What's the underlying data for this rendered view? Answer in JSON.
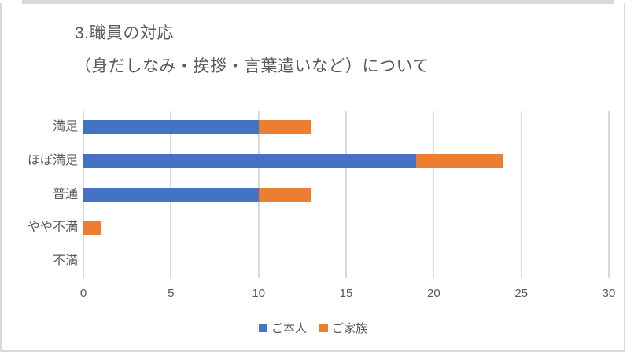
{
  "chart_data": {
    "type": "bar",
    "orientation": "horizontal",
    "stacked": true,
    "title_lines": [
      "3.職員の対応",
      "（身だしなみ・挨拶・言葉遣いなど）について"
    ],
    "categories": [
      "満足",
      "ほぼ満足",
      "普通",
      "やや不満",
      "不満"
    ],
    "series": [
      {
        "name": "ご本人",
        "color": "#4472C4",
        "values": [
          10,
          19,
          10,
          0,
          0
        ]
      },
      {
        "name": "ご家族",
        "color": "#ED7D31",
        "values": [
          3,
          5,
          3,
          1,
          0
        ]
      }
    ],
    "totals": [
      13,
      24,
      13,
      1,
      0
    ],
    "xlim": [
      0,
      30
    ],
    "x_ticks": [
      0,
      5,
      10,
      15,
      20,
      25,
      30
    ],
    "grid": true,
    "legend_position": "bottom",
    "colors": {
      "gridline": "#D9D9D9",
      "frame_border": "#D9D9D9",
      "text": "#595959",
      "background": "#FFFFFF"
    }
  }
}
